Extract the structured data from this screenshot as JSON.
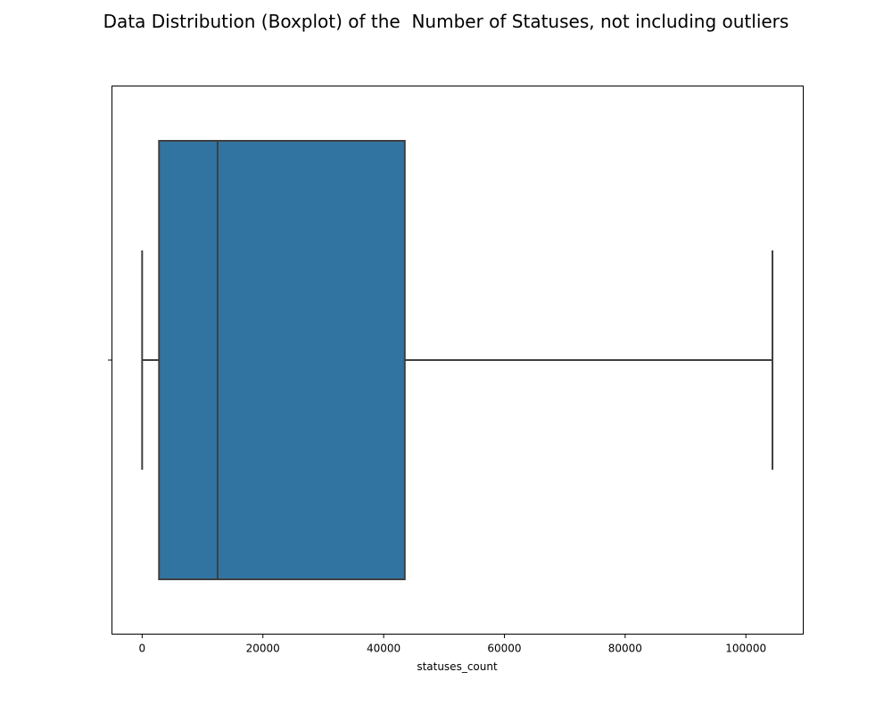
{
  "chart_data": {
    "type": "boxplot",
    "title": "Data Distribution (Boxplot) of the  Number of Statuses, not including outliers",
    "xlabel": "statuses_count",
    "ylabel": "",
    "xlim": [
      -5000,
      109500
    ],
    "xticks": [
      0,
      20000,
      40000,
      60000,
      80000,
      100000
    ],
    "xtick_labels": [
      "0",
      "20000",
      "40000",
      "60000",
      "80000",
      "100000"
    ],
    "grid": false,
    "box": {
      "whisker_low": 0,
      "q1": 2800,
      "median": 12500,
      "q3": 43500,
      "whisker_high": 104400
    },
    "colors": {
      "box_fill": "#3274a1",
      "line": "#3f3f3f"
    }
  }
}
